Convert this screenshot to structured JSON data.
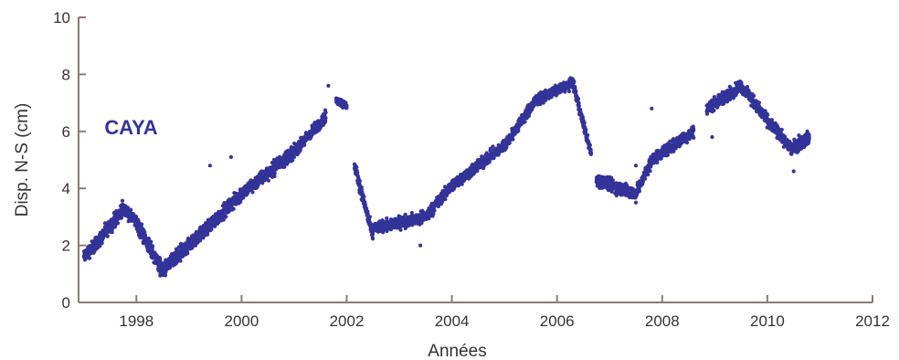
{
  "chart_data": {
    "type": "scatter",
    "title": "",
    "xlabel": "Années",
    "ylabel": "Disp. N-S (cm)",
    "xlim": [
      1996.9,
      2012
    ],
    "ylim": [
      0,
      10
    ],
    "xticks": [
      1998,
      2000,
      2002,
      2004,
      2006,
      2008,
      2010,
      2012
    ],
    "yticks": [
      0,
      2,
      4,
      6,
      8,
      10
    ],
    "grid": false,
    "legend": "none",
    "annotations": [
      {
        "text": "CAYA",
        "x": 1997.9,
        "y": 5.9
      }
    ],
    "colors": {
      "marker": "#333399",
      "axis": "#8a7a78",
      "text": "#333333"
    },
    "series": [
      {
        "segments": [
          {
            "t0": 1997.0,
            "t1": 1997.3,
            "y0": 1.6,
            "y1": 2.2,
            "spread": 0.35
          },
          {
            "t0": 1997.3,
            "t1": 1997.75,
            "y0": 2.2,
            "y1": 3.3,
            "spread": 0.35
          },
          {
            "t0": 1997.75,
            "t1": 1998.0,
            "y0": 3.3,
            "y1": 2.8,
            "spread": 0.3
          },
          {
            "t0": 1998.0,
            "t1": 1998.5,
            "y0": 2.8,
            "y1": 1.1,
            "spread": 0.4
          },
          {
            "t0": 1998.5,
            "t1": 1999.0,
            "y0": 1.1,
            "y1": 2.0,
            "spread": 0.4
          },
          {
            "t0": 1999.0,
            "t1": 2000.0,
            "y0": 2.0,
            "y1": 3.8,
            "spread": 0.35
          },
          {
            "t0": 2000.0,
            "t1": 2001.0,
            "y0": 3.8,
            "y1": 5.3,
            "spread": 0.35
          },
          {
            "t0": 2001.0,
            "t1": 2001.6,
            "y0": 5.3,
            "y1": 6.5,
            "spread": 0.3
          },
          {
            "t0": 2001.8,
            "t1": 2002.0,
            "y0": 7.1,
            "y1": 6.9,
            "spread": 0.2
          },
          {
            "t0": 2002.15,
            "t1": 2002.5,
            "y0": 4.8,
            "y1": 2.3,
            "spread": 0.3
          },
          {
            "t0": 2002.5,
            "t1": 2003.5,
            "y0": 2.6,
            "y1": 3.0,
            "spread": 0.3
          },
          {
            "t0": 2003.5,
            "t1": 2004.0,
            "y0": 3.0,
            "y1": 4.1,
            "spread": 0.3
          },
          {
            "t0": 2004.0,
            "t1": 2005.0,
            "y0": 4.1,
            "y1": 5.5,
            "spread": 0.3
          },
          {
            "t0": 2005.0,
            "t1": 2005.6,
            "y0": 5.5,
            "y1": 7.1,
            "spread": 0.3
          },
          {
            "t0": 2005.6,
            "t1": 2006.3,
            "y0": 7.1,
            "y1": 7.7,
            "spread": 0.25
          },
          {
            "t0": 2006.3,
            "t1": 2006.65,
            "y0": 7.7,
            "y1": 5.2,
            "spread": 0.25
          },
          {
            "t0": 2006.75,
            "t1": 2007.5,
            "y0": 4.3,
            "y1": 3.8,
            "spread": 0.35
          },
          {
            "t0": 2007.5,
            "t1": 2007.8,
            "y0": 3.8,
            "y1": 5.0,
            "spread": 0.3
          },
          {
            "t0": 2007.8,
            "t1": 2008.6,
            "y0": 5.0,
            "y1": 6.0,
            "spread": 0.3
          },
          {
            "t0": 2008.85,
            "t1": 2009.5,
            "y0": 6.8,
            "y1": 7.6,
            "spread": 0.3
          },
          {
            "t0": 2009.5,
            "t1": 2010.0,
            "y0": 7.6,
            "y1": 6.4,
            "spread": 0.3
          },
          {
            "t0": 2010.0,
            "t1": 2010.45,
            "y0": 6.4,
            "y1": 5.4,
            "spread": 0.3
          },
          {
            "t0": 2010.45,
            "t1": 2010.8,
            "y0": 5.4,
            "y1": 5.8,
            "spread": 0.35
          }
        ]
      }
    ]
  }
}
